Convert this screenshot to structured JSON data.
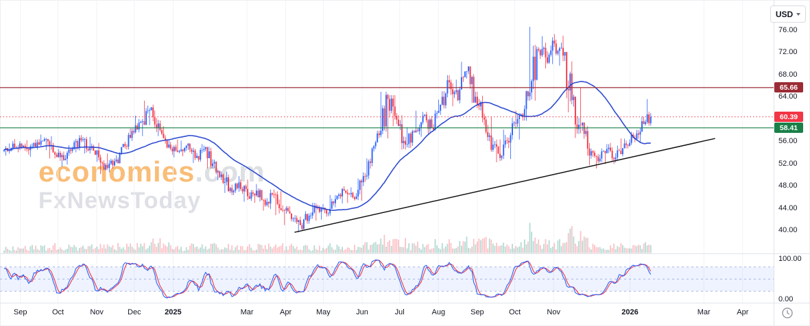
{
  "toolbar": {
    "currency_label": "USD"
  },
  "watermark": {
    "line1_main": "economies",
    "line1_suffix": ".com",
    "line2": "FxNewsToday"
  },
  "colors": {
    "up": "#2962ff",
    "down": "#f23645",
    "background": "#ffffff",
    "grid": "#f2f3f7",
    "border": "#e0e3eb",
    "text": "#131722"
  },
  "price_axis": {
    "ticks": [
      "76.00",
      "72.00",
      "68.00",
      "64.00",
      "56.00",
      "52.00",
      "48.00",
      "44.00",
      "40.00"
    ],
    "tick_values": [
      76,
      72,
      68,
      64,
      56,
      52,
      48,
      44,
      40
    ]
  },
  "oscillator_axis": {
    "ticks": [
      "100.00",
      "0.00"
    ],
    "tick_values": [
      100,
      0
    ]
  },
  "levels": {
    "resistance": {
      "value": 65.66,
      "label": "65.66",
      "color": "#9b2c35",
      "style": "solid"
    },
    "last_price": {
      "value": 60.39,
      "label": "60.39",
      "color": "#f23645",
      "style": "dotted"
    },
    "support": {
      "value": 58.41,
      "label": "58.41",
      "color": "#1a8048",
      "style": "solid"
    }
  },
  "trendline": {
    "start": {
      "date": "2025-04-08",
      "price": 39.6
    },
    "end": {
      "date": "2026-03-10",
      "price": 56.5
    },
    "color": "#111111"
  },
  "time_axis": {
    "labels": [
      {
        "text": "Sep",
        "date": "2024-09-01",
        "bold": false
      },
      {
        "text": "Oct",
        "date": "2024-10-01",
        "bold": false
      },
      {
        "text": "Nov",
        "date": "2024-11-01",
        "bold": false
      },
      {
        "text": "Dec",
        "date": "2024-12-01",
        "bold": false
      },
      {
        "text": "2025",
        "date": "2025-01-01",
        "bold": true
      },
      {
        "text": "Mar",
        "date": "2025-03-01",
        "bold": false
      },
      {
        "text": "Apr",
        "date": "2025-04-01",
        "bold": false
      },
      {
        "text": "May",
        "date": "2025-05-01",
        "bold": false
      },
      {
        "text": "Jun",
        "date": "2025-06-01",
        "bold": false
      },
      {
        "text": "Jul",
        "date": "2025-07-01",
        "bold": false
      },
      {
        "text": "Aug",
        "date": "2025-08-01",
        "bold": false
      },
      {
        "text": "Sep",
        "date": "2025-09-01",
        "bold": false
      },
      {
        "text": "Oct",
        "date": "2025-10-01",
        "bold": false
      },
      {
        "text": "Nov",
        "date": "2025-11-01",
        "bold": false
      },
      {
        "text": "2026",
        "date": "2026-01-01",
        "bold": true
      },
      {
        "text": "Mar",
        "date": "2026-03-01",
        "bold": false
      },
      {
        "text": "Apr",
        "date": "2026-04-01",
        "bold": false
      }
    ]
  },
  "chart_data": {
    "type": "candlestick",
    "currency": "USD",
    "title": "",
    "y_range": [
      38.5,
      78
    ],
    "oscillator_range": [
      0,
      100
    ],
    "columns": [
      "date",
      "open",
      "high",
      "low",
      "close"
    ],
    "ohlc_weekly": [
      [
        "2024-08-19",
        54.2,
        55.6,
        53.4,
        54.8
      ],
      [
        "2024-08-26",
        54.8,
        56.4,
        54.0,
        55.6
      ],
      [
        "2024-09-02",
        55.6,
        56.2,
        53.6,
        54.4
      ],
      [
        "2024-09-09",
        54.4,
        56.3,
        53.2,
        55.8
      ],
      [
        "2024-09-16",
        55.8,
        57.2,
        54.4,
        56.4
      ],
      [
        "2024-09-23",
        56.4,
        56.9,
        52.9,
        53.6
      ],
      [
        "2024-09-30",
        53.6,
        54.6,
        51.4,
        52.6
      ],
      [
        "2024-10-07",
        52.6,
        55.3,
        51.8,
        54.6
      ],
      [
        "2024-10-14",
        54.6,
        57.1,
        54.0,
        56.2
      ],
      [
        "2024-10-21",
        56.2,
        56.8,
        53.8,
        54.8
      ],
      [
        "2024-10-28",
        54.8,
        55.7,
        52.3,
        53.1
      ],
      [
        "2024-11-04",
        53.1,
        53.8,
        50.1,
        51.2
      ],
      [
        "2024-11-11",
        51.2,
        53.5,
        50.4,
        52.7
      ],
      [
        "2024-11-18",
        52.7,
        55.9,
        52.0,
        55.1
      ],
      [
        "2024-11-25",
        55.1,
        58.3,
        54.5,
        57.6
      ],
      [
        "2024-12-02",
        57.6,
        60.6,
        56.9,
        59.6
      ],
      [
        "2024-12-09",
        59.6,
        63.3,
        58.9,
        62.1
      ],
      [
        "2024-12-16",
        62.1,
        62.6,
        56.9,
        58.0
      ],
      [
        "2024-12-23",
        58.0,
        58.7,
        54.7,
        55.4
      ],
      [
        "2024-12-30",
        55.4,
        56.3,
        53.1,
        54.1
      ],
      [
        "2025-01-06",
        54.1,
        56.1,
        53.3,
        55.2
      ],
      [
        "2025-01-13",
        55.2,
        55.7,
        52.1,
        53.0
      ],
      [
        "2025-01-20",
        53.0,
        55.5,
        52.3,
        54.6
      ],
      [
        "2025-01-27",
        54.6,
        55.0,
        51.1,
        52.0
      ],
      [
        "2025-02-03",
        52.0,
        52.7,
        49.0,
        50.0
      ],
      [
        "2025-02-10",
        50.0,
        50.5,
        46.7,
        47.6
      ],
      [
        "2025-02-17",
        47.6,
        49.7,
        46.3,
        48.6
      ],
      [
        "2025-02-24",
        48.6,
        49.1,
        45.1,
        46.1
      ],
      [
        "2025-03-03",
        46.1,
        48.3,
        44.9,
        47.1
      ],
      [
        "2025-03-10",
        47.1,
        47.5,
        43.5,
        44.5
      ],
      [
        "2025-03-17",
        44.5,
        47.3,
        43.8,
        46.4
      ],
      [
        "2025-03-24",
        46.4,
        47.0,
        42.7,
        43.6
      ],
      [
        "2025-03-31",
        43.6,
        44.3,
        40.9,
        42.0
      ],
      [
        "2025-04-07",
        42.0,
        42.7,
        39.6,
        40.9
      ],
      [
        "2025-04-14",
        40.9,
        43.4,
        39.9,
        42.6
      ],
      [
        "2025-04-21",
        42.6,
        44.9,
        41.7,
        44.1
      ],
      [
        "2025-04-28",
        44.1,
        44.7,
        41.9,
        43.0
      ],
      [
        "2025-05-05",
        43.0,
        46.3,
        42.5,
        45.6
      ],
      [
        "2025-05-12",
        45.6,
        47.9,
        44.8,
        47.1
      ],
      [
        "2025-05-19",
        47.1,
        47.7,
        44.9,
        45.9
      ],
      [
        "2025-05-26",
        45.9,
        49.3,
        45.3,
        48.6
      ],
      [
        "2025-06-02",
        48.6,
        52.9,
        47.9,
        52.1
      ],
      [
        "2025-06-09",
        52.1,
        57.9,
        51.5,
        57.1
      ],
      [
        "2025-06-16",
        57.1,
        64.9,
        56.5,
        63.6
      ],
      [
        "2025-06-23",
        63.6,
        64.3,
        58.7,
        59.9
      ],
      [
        "2025-06-30",
        59.9,
        60.7,
        54.5,
        55.4
      ],
      [
        "2025-07-07",
        55.4,
        58.5,
        54.8,
        57.6
      ],
      [
        "2025-07-14",
        57.6,
        61.5,
        56.8,
        60.6
      ],
      [
        "2025-07-21",
        60.6,
        61.3,
        57.3,
        58.4
      ],
      [
        "2025-07-28",
        58.4,
        63.5,
        57.9,
        62.6
      ],
      [
        "2025-08-04",
        62.6,
        67.9,
        61.9,
        66.6
      ],
      [
        "2025-08-11",
        66.6,
        67.1,
        62.3,
        63.4
      ],
      [
        "2025-08-18",
        63.4,
        70.3,
        62.8,
        68.6
      ],
      [
        "2025-08-25",
        68.6,
        69.5,
        62.9,
        64.0
      ],
      [
        "2025-09-01",
        64.0,
        64.9,
        58.9,
        59.9
      ],
      [
        "2025-09-08",
        59.9,
        60.5,
        54.1,
        55.4
      ],
      [
        "2025-09-15",
        55.4,
        56.3,
        52.2,
        53.4
      ],
      [
        "2025-09-22",
        53.4,
        58.1,
        52.8,
        57.1
      ],
      [
        "2025-09-29",
        57.1,
        61.5,
        56.3,
        60.6
      ],
      [
        "2025-10-06",
        60.6,
        65.1,
        59.7,
        64.1
      ],
      [
        "2025-10-13",
        64.1,
        76.6,
        63.3,
        72.6
      ],
      [
        "2025-10-20",
        72.6,
        74.9,
        69.1,
        71.1
      ],
      [
        "2025-10-27",
        71.1,
        75.3,
        69.9,
        73.6
      ],
      [
        "2025-11-03",
        73.6,
        75.0,
        69.6,
        71.4
      ],
      [
        "2025-11-10",
        71.4,
        72.1,
        61.2,
        63.4
      ],
      [
        "2025-11-17",
        63.4,
        65.6,
        56.6,
        58.9
      ],
      [
        "2025-11-24",
        58.9,
        59.4,
        51.7,
        53.4
      ],
      [
        "2025-12-01",
        53.4,
        54.7,
        51.1,
        52.4
      ],
      [
        "2025-12-08",
        52.4,
        55.5,
        51.9,
        54.6
      ],
      [
        "2025-12-15",
        54.6,
        55.7,
        51.9,
        53.1
      ],
      [
        "2025-12-22",
        53.1,
        56.5,
        52.5,
        55.6
      ],
      [
        "2025-12-29",
        55.6,
        57.7,
        54.7,
        56.6
      ],
      [
        "2026-01-05",
        56.6,
        60.5,
        55.8,
        59.6
      ],
      [
        "2026-01-12",
        59.6,
        63.6,
        58.8,
        60.39
      ]
    ],
    "indicators": {
      "moving_average": {
        "type": "SMA",
        "period": 40,
        "color": "#2341ce"
      },
      "stochastic": {
        "k_period": 14,
        "k_smooth": 3,
        "d_period": 3,
        "bands": [
          80,
          50,
          20
        ],
        "range": [
          0,
          100
        ],
        "k_color": "#2962ff",
        "d_color": "#f23645"
      }
    },
    "volume": {
      "position": "overlay-bottom",
      "up_color": "rgba(41,152,128,0.35)",
      "down_color": "rgba(242,54,69,0.30)"
    }
  }
}
